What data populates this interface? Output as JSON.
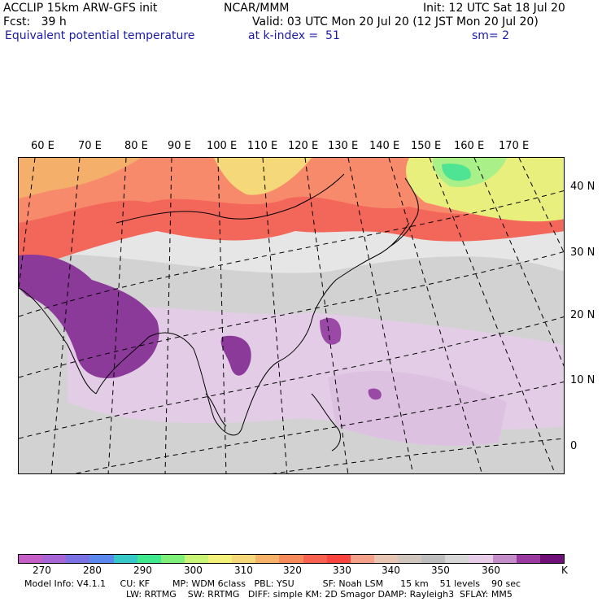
{
  "header": {
    "line1_left": "ACCLIP 15km ARW-GFS init",
    "line1_center": "NCAR/MMM",
    "line1_right": "Init: 12 UTC Sat 18 Jul 20",
    "line2_left": "Fcst:   39 h",
    "line2_right": "Valid: 03 UTC Mon 20 Jul 20 (12 JST Mon 20 Jul 20)",
    "line3_left": "Equivalent potential temperature",
    "line3_center": "at k-index =  51",
    "line3_right": "sm= 2"
  },
  "map": {
    "longitude_labels": [
      "60 E",
      "70 E",
      "80 E",
      "90 E",
      "100 E",
      "110 E",
      "120 E",
      "130 E",
      "140 E",
      "150 E",
      "160 E",
      "170 E"
    ],
    "latitude_labels": [
      "40 N",
      "30 N",
      "20 N",
      "10 N",
      "0"
    ]
  },
  "colorbar": {
    "colors": [
      "#c65ec8",
      "#a865d6",
      "#7a72e4",
      "#5a88ee",
      "#36c8c8",
      "#40e88c",
      "#7ef07a",
      "#c8f576",
      "#f2f27a",
      "#f6d87a",
      "#f7b26a",
      "#f78a5a",
      "#f86050",
      "#f9433f",
      "#f5a088",
      "#e8c4b2",
      "#cfc5bd",
      "#bdbdbd",
      "#d6d6d6",
      "#e8cde8",
      "#c48cc8",
      "#9a3aa0",
      "#6e1078"
    ],
    "tick_labels": [
      "270",
      "280",
      "290",
      "300",
      "310",
      "320",
      "330",
      "340",
      "350",
      "360",
      "K"
    ]
  },
  "footer": {
    "line1": "Model Info: V4.1.1     CU: KF        MP: WDM 6class   PBL: YSU          SF: Noah LSM      15 km    51 levels    90 sec",
    "line2": "LW: RRTMG    SW: RRTMG   DIFF: simple KM: 2D Smagor DAMP: Rayleigh3  SFLAY: MM5"
  }
}
